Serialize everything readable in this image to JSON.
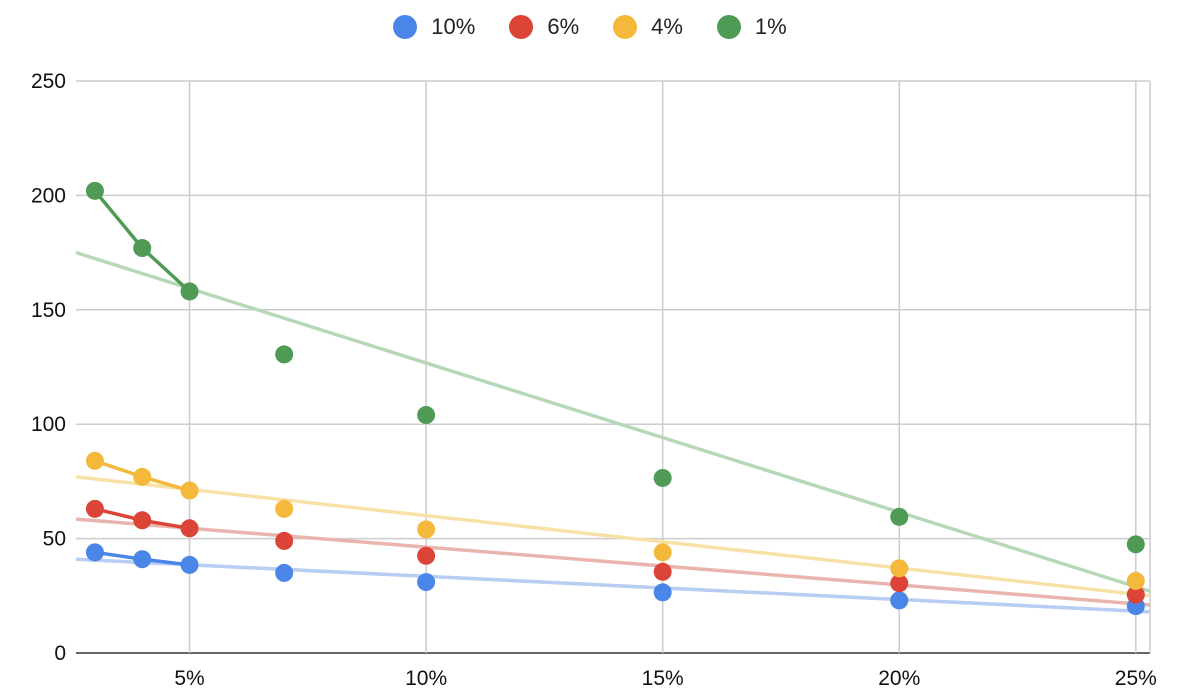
{
  "chart_data": {
    "type": "scatter",
    "title": "",
    "xlabel": "",
    "ylabel": "",
    "x_ticks": [
      "5%",
      "10%",
      "15%",
      "20%",
      "25%"
    ],
    "x_tick_values": [
      5,
      10,
      15,
      20,
      25
    ],
    "xlim": [
      2.6,
      25.3
    ],
    "y_ticks": [
      "0",
      "50",
      "100",
      "150",
      "200",
      "250"
    ],
    "y_tick_values": [
      0,
      50,
      100,
      150,
      200,
      250
    ],
    "ylim": [
      0,
      250
    ],
    "grid": true,
    "legend_position": "top",
    "x": [
      3,
      4,
      5,
      7,
      10,
      15,
      20,
      25
    ],
    "series": [
      {
        "name": "10%",
        "color": "#4a86e8",
        "trend_color": "#b7cdf3",
        "values": [
          44,
          41,
          38.5,
          35,
          31,
          26.5,
          23,
          20.5
        ],
        "line_through_x": [
          3,
          4,
          5
        ],
        "trendline": [
          [
            2.6,
            41
          ],
          [
            25.3,
            18
          ]
        ]
      },
      {
        "name": "6%",
        "color": "#db4437",
        "trend_color": "#eab4ae",
        "values": [
          63,
          58,
          54.5,
          49,
          42.5,
          35.5,
          30.5,
          25.5
        ],
        "line_through_x": [
          3,
          4,
          5
        ],
        "trendline": [
          [
            2.6,
            58.5
          ],
          [
            25.3,
            21
          ]
        ]
      },
      {
        "name": "4%",
        "color": "#f4b93b",
        "trend_color": "#f7e1a6",
        "values": [
          84,
          77,
          71,
          63,
          54,
          44,
          37,
          31.5
        ],
        "line_through_x": [
          3,
          4,
          5
        ],
        "trendline": [
          [
            2.6,
            77
          ],
          [
            25.3,
            25
          ]
        ]
      },
      {
        "name": "1%",
        "color": "#4f9a55",
        "trend_color": "#b6d8b8",
        "values": [
          202,
          177,
          158,
          130.5,
          104,
          76.5,
          59.5,
          47.5
        ],
        "line_through_x": [
          3,
          4,
          5
        ],
        "trendline": [
          [
            2.6,
            175
          ],
          [
            25.3,
            27
          ]
        ]
      }
    ]
  }
}
